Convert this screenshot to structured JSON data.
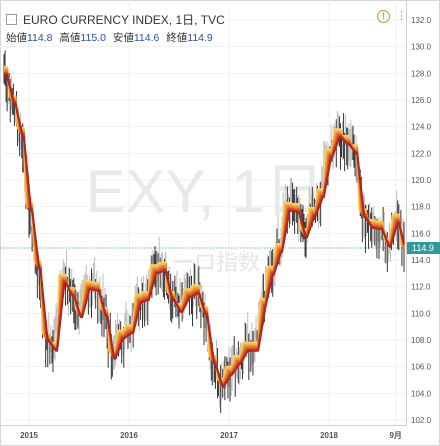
{
  "header": {
    "symbol_title": "EURO CURRENCY INDEX, 1日, TVC",
    "alert_icon": "alert-circle-icon",
    "menu_icon": "vertical-dots-icon"
  },
  "ohlc": {
    "open_label": "始値",
    "open_value": "114.8",
    "high_label": "高値",
    "high_value": "115.0",
    "low_label": "安値",
    "low_value": "114.6",
    "close_label": "終値",
    "close_value": "114.9"
  },
  "watermark": {
    "line1": "EXY, 1日",
    "line2": "ユーロ指数"
  },
  "price_axis": {
    "ticks": [
      "132.0",
      "130.0",
      "128.0",
      "126.0",
      "124.0",
      "122.0",
      "120.0",
      "118.0",
      "116.0",
      "114.0",
      "112.0",
      "110.0",
      "108.0",
      "106.0",
      "104.0",
      "102.0"
    ],
    "last_price": "114.9"
  },
  "time_axis": {
    "ticks": [
      "2015",
      "2016",
      "2017",
      "2018",
      "9月"
    ]
  },
  "colors": {
    "accent_price": "#2f9a9a",
    "ribbon_dark": "#b2241d",
    "ribbon_light": "#f6d46a",
    "candle_up": "#bdbdbd",
    "candle_down": "#333333"
  },
  "chart_data": {
    "type": "line",
    "ylim": [
      102,
      132
    ],
    "x": [
      "2014-10",
      "2014-11",
      "2014-12",
      "2015-01",
      "2015-02",
      "2015-03",
      "2015-04",
      "2015-05",
      "2015-06",
      "2015-07",
      "2015-08",
      "2015-09",
      "2015-10",
      "2015-11",
      "2015-12",
      "2016-01",
      "2016-02",
      "2016-03",
      "2016-04",
      "2016-05",
      "2016-06",
      "2016-07",
      "2016-08",
      "2016-09",
      "2016-10",
      "2016-11",
      "2016-12",
      "2017-01",
      "2017-02",
      "2017-03",
      "2017-04",
      "2017-05",
      "2017-06",
      "2017-07",
      "2017-08",
      "2017-09",
      "2017-10",
      "2017-11",
      "2017-12",
      "2018-01",
      "2018-02",
      "2018-03",
      "2018-04",
      "2018-05",
      "2018-06",
      "2018-07",
      "2018-08",
      "2018-09",
      "2018-10"
    ],
    "series": [
      {
        "values": [
          128.2,
          126.0,
          123.6,
          118.0,
          113.6,
          108.2,
          107.5,
          112.6,
          111.6,
          110.0,
          112.1,
          112.0,
          110.1,
          106.9,
          108.4,
          108.8,
          111.1,
          111.3,
          113.3,
          113.5,
          111.3,
          110.4,
          111.5,
          111.8,
          110.2,
          106.5,
          104.8,
          105.7,
          106.5,
          107.5,
          107.5,
          110.8,
          113.2,
          114.9,
          118.0,
          117.9,
          116.0,
          117.6,
          119.0,
          122.0,
          123.5,
          123.0,
          122.3,
          117.5,
          116.7,
          116.6,
          115.3,
          117.1,
          114.9
        ]
      }
    ]
  }
}
